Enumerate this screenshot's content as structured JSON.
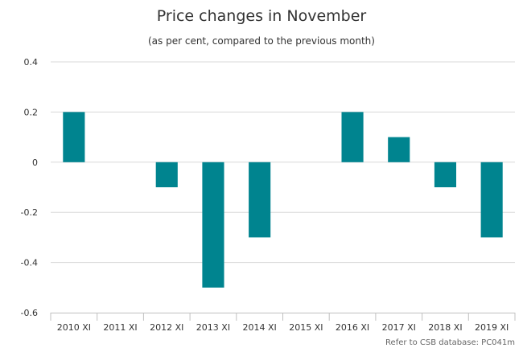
{
  "chart_data": {
    "type": "bar",
    "title": "Price changes in November",
    "subtitle": "(as per cent, compared to the previous month)",
    "categories": [
      "2010 XI",
      "2011 XI",
      "2012 XI",
      "2013 XI",
      "2014 XI",
      "2015 XI",
      "2016 XI",
      "2017 XI",
      "2018 XI",
      "2019 XI"
    ],
    "values": [
      0.2,
      0,
      -0.1,
      -0.5,
      -0.3,
      0,
      0.2,
      0.1,
      -0.1,
      -0.3
    ],
    "ylim": [
      -0.6,
      0.4
    ],
    "yticks": [
      "0.4",
      "0.2",
      "0",
      "-0.2",
      "-0.4",
      "-0.6"
    ],
    "xlabel": "",
    "ylabel": "",
    "grid": true,
    "bar_color": "#00848f",
    "credit": "Refer to CSB database: PC041m"
  }
}
